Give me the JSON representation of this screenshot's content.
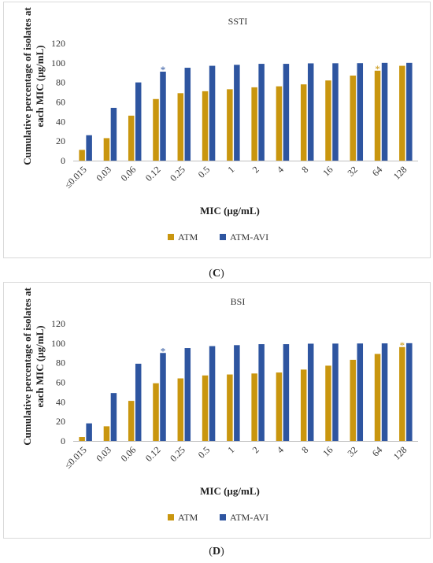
{
  "colors": {
    "atm": "#C9960F",
    "atm_avi": "#2E55A0",
    "grid": "#d9d9d9",
    "axis": "#595959"
  },
  "chart_data": [
    {
      "type": "bar",
      "title": "SSTI",
      "panel_label": "C",
      "xlabel": "MIC (µg/mL)",
      "ylabel_lines": [
        "Cumulative percentage of isolates at",
        "each MIC (µg/mL)"
      ],
      "ylim": [
        0,
        120
      ],
      "yticks": [
        0,
        20,
        40,
        60,
        80,
        100,
        120
      ],
      "grid": false,
      "legend": "bottom",
      "categories": [
        "≤0.015",
        "0.03",
        "0.06",
        "0.12",
        "0.25",
        "0.5",
        "1",
        "2",
        "4",
        "8",
        "16",
        "32",
        "64",
        "128"
      ],
      "series": [
        {
          "name": "ATM",
          "color": "#C9960F",
          "values": [
            11,
            23,
            46,
            63,
            69,
            71,
            73,
            75,
            76,
            78,
            82,
            87,
            92,
            97
          ]
        },
        {
          "name": "ATM-AVI",
          "color": "#2E55A0",
          "values": [
            26,
            54,
            80,
            91,
            95,
            97,
            98,
            99,
            99,
            99.5,
            99.6,
            99.7,
            100,
            100
          ]
        }
      ],
      "annotations": [
        {
          "text": "*",
          "series": "ATM-AVI",
          "category": "0.12"
        },
        {
          "text": "*",
          "series": "ATM",
          "category": "64"
        }
      ]
    },
    {
      "type": "bar",
      "title": "BSI",
      "panel_label": "D",
      "xlabel": "MIC (µg/mL)",
      "ylabel_lines": [
        "Cumulative percentage of isolates at",
        "each MIC (µg/mL)"
      ],
      "ylim": [
        0,
        120
      ],
      "yticks": [
        0,
        20,
        40,
        60,
        80,
        100,
        120
      ],
      "grid": false,
      "legend": "bottom",
      "categories": [
        "≤0.015",
        "0.03",
        "0.06",
        "0.12",
        "0.25",
        "0.5",
        "1",
        "2",
        "4",
        "8",
        "16",
        "32",
        "64",
        "128"
      ],
      "series": [
        {
          "name": "ATM",
          "color": "#C9960F",
          "values": [
            4,
            15,
            41,
            59,
            64,
            67,
            68,
            69,
            70,
            73,
            77,
            83,
            89,
            96
          ]
        },
        {
          "name": "ATM-AVI",
          "color": "#2E55A0",
          "values": [
            18,
            49,
            79,
            90,
            95,
            97,
            98,
            99,
            99,
            99.5,
            99.6,
            99.7,
            99.8,
            100
          ]
        }
      ],
      "annotations": [
        {
          "text": "*",
          "series": "ATM-AVI",
          "category": "0.12"
        },
        {
          "text": "*",
          "series": "ATM",
          "category": "128"
        }
      ]
    }
  ]
}
